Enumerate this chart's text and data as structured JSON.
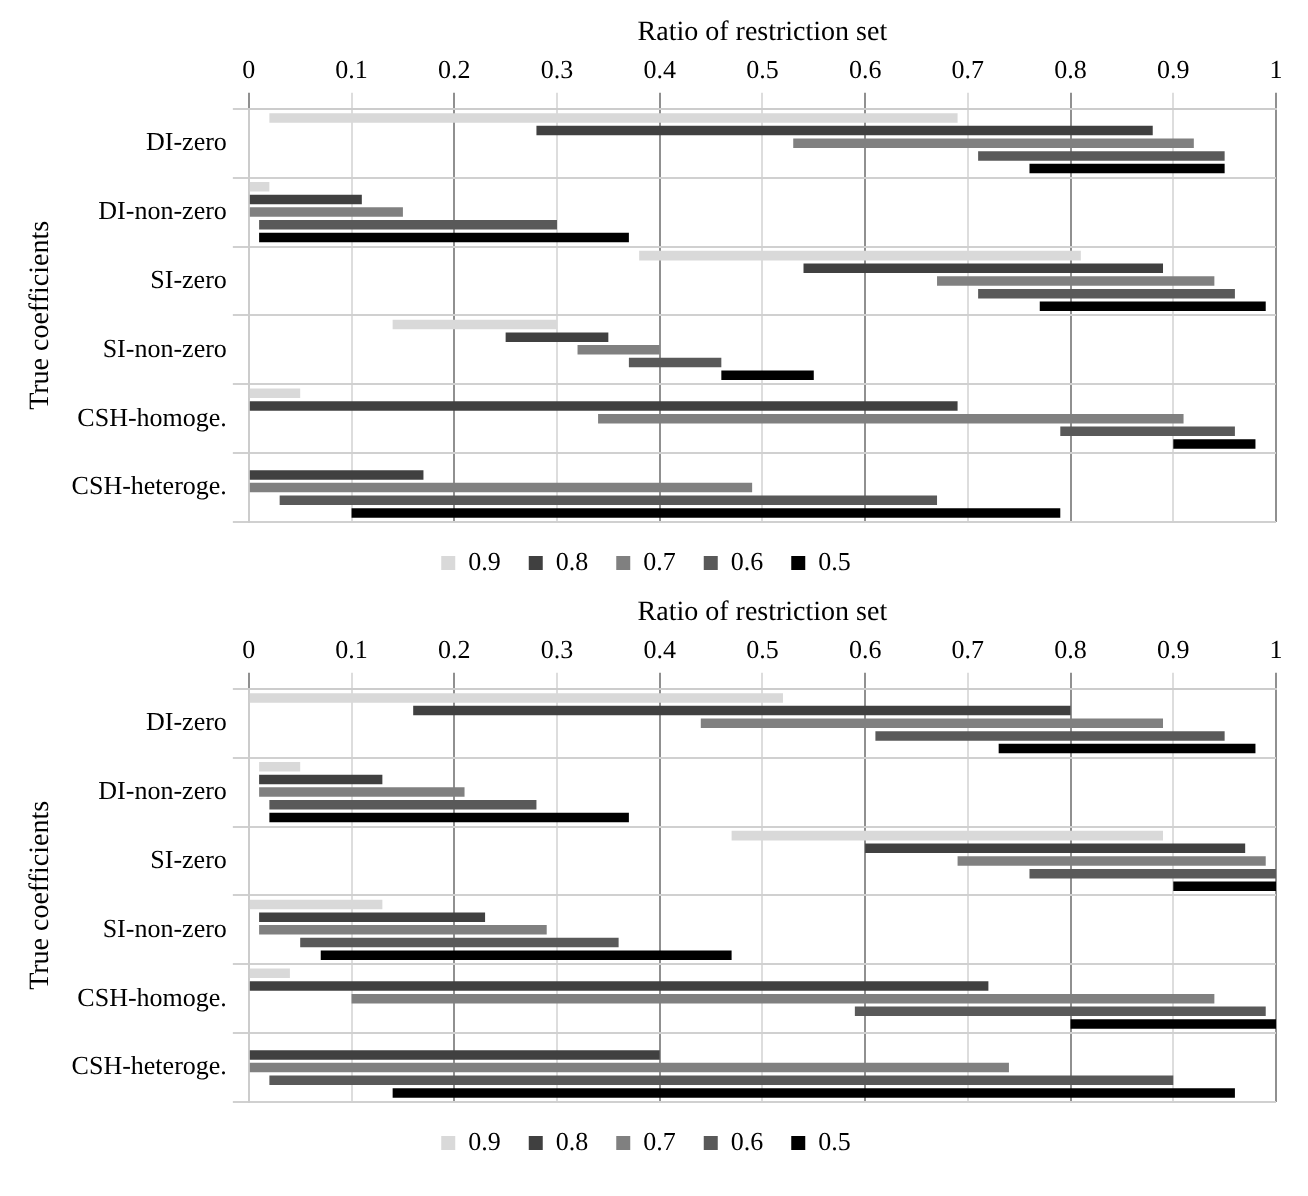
{
  "chart_data": [
    {
      "type": "bar",
      "orientation": "horizontal",
      "xlabel": "Ratio of restriction set",
      "ylabel": "True coefficients",
      "categories": [
        "DI-zero",
        "DI-non-zero",
        "SI-zero",
        "SI-non-zero",
        "CSH-homoge.",
        "CSH-heteroge."
      ],
      "xlim": [
        0,
        1
      ],
      "xticks": [
        0,
        0.1,
        0.2,
        0.3,
        0.4,
        0.5,
        0.6,
        0.7,
        0.8,
        0.9,
        1
      ],
      "grid": true,
      "legend": "bottom",
      "series": [
        {
          "name": "0.9",
          "color": "#d9d9d9",
          "base": [
            0.02,
            0,
            0.38,
            0.14,
            0,
            null
          ],
          "values": [
            0.67,
            0.02,
            0.43,
            0.16,
            0.05,
            null
          ]
        },
        {
          "name": "0.8",
          "color": "#404040",
          "base": [
            0.28,
            0,
            0.54,
            0.25,
            0,
            0
          ],
          "values": [
            0.6,
            0.11,
            0.35,
            0.1,
            0.69,
            0.17
          ]
        },
        {
          "name": "0.7",
          "color": "#808080",
          "base": [
            0.53,
            0,
            0.67,
            0.32,
            0.34,
            0
          ],
          "values": [
            0.39,
            0.15,
            0.27,
            0.08,
            0.57,
            0.49
          ]
        },
        {
          "name": "0.6",
          "color": "#595959",
          "base": [
            0.71,
            0.01,
            0.71,
            0.37,
            0.79,
            0.03
          ],
          "values": [
            0.24,
            0.29,
            0.25,
            0.09,
            0.17,
            0.64
          ]
        },
        {
          "name": "0.5",
          "color": "#000000",
          "base": [
            0.76,
            0.01,
            0.77,
            0.46,
            0.9,
            0.1
          ],
          "values": [
            0.19,
            0.36,
            0.22,
            0.09,
            0.08,
            0.69
          ]
        }
      ]
    },
    {
      "type": "bar",
      "orientation": "horizontal",
      "xlabel": "Ratio of restriction set",
      "ylabel": "True coefficients",
      "categories": [
        "DI-zero",
        "DI-non-zero",
        "SI-zero",
        "SI-non-zero",
        "CSH-homoge.",
        "CSH-heteroge."
      ],
      "xlim": [
        0,
        1
      ],
      "xticks": [
        0,
        0.1,
        0.2,
        0.3,
        0.4,
        0.5,
        0.6,
        0.7,
        0.8,
        0.9,
        1
      ],
      "grid": true,
      "legend": "bottom",
      "series": [
        {
          "name": "0.9",
          "color": "#d9d9d9",
          "base": [
            0,
            0.01,
            0.47,
            0,
            0,
            null
          ],
          "values": [
            0.52,
            0.04,
            0.42,
            0.13,
            0.04,
            null
          ]
        },
        {
          "name": "0.8",
          "color": "#404040",
          "base": [
            0.16,
            0.01,
            0.6,
            0.01,
            0,
            0
          ],
          "values": [
            0.64,
            0.12,
            0.37,
            0.22,
            0.72,
            0.4
          ]
        },
        {
          "name": "0.7",
          "color": "#808080",
          "base": [
            0.44,
            0.01,
            0.69,
            0.01,
            0.1,
            0
          ],
          "values": [
            0.45,
            0.2,
            0.3,
            0.28,
            0.84,
            0.74
          ]
        },
        {
          "name": "0.6",
          "color": "#595959",
          "base": [
            0.61,
            0.02,
            0.76,
            0.05,
            0.59,
            0.02
          ],
          "values": [
            0.34,
            0.26,
            0.24,
            0.31,
            0.4,
            0.88
          ]
        },
        {
          "name": "0.5",
          "color": "#000000",
          "base": [
            0.73,
            0.02,
            0.9,
            0.07,
            0.8,
            0.14
          ],
          "values": [
            0.25,
            0.35,
            0.1,
            0.4,
            0.2,
            0.82
          ]
        }
      ]
    }
  ]
}
